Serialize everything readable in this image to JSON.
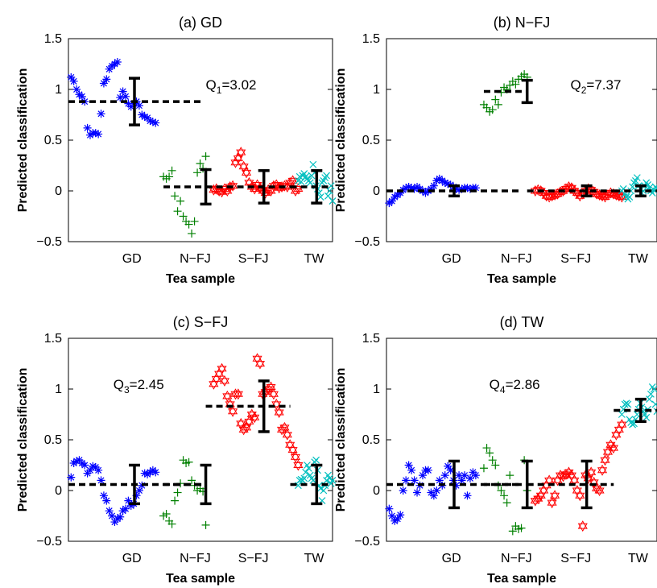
{
  "chart_data": [
    {
      "type": "scatter",
      "title": "(a) GD",
      "xlabel": "Tea sample",
      "ylabel": "Predicted classification",
      "ylim": [
        -0.5,
        1.5
      ],
      "yticks": [
        "-0.5",
        "0",
        "0.5",
        "1",
        "1.5"
      ],
      "categories": [
        "GD",
        "N−FJ",
        "S−FJ",
        "TW"
      ],
      "annotation": {
        "q": "Q",
        "sub": "1",
        "val": "=3.02"
      },
      "colors": {
        "GD": "#0000ff",
        "N−FJ": "#008000",
        "S−FJ": "#ff0000",
        "TW": "#00bfbf"
      },
      "markers": {
        "GD": "asterisk",
        "N−FJ": "plus",
        "S−FJ": "hexagram",
        "TW": "cross"
      },
      "groups": [
        {
          "name": "GD",
          "mean": 0.88,
          "sd": 0.23,
          "values": [
            1.12,
            1.08,
            1.0,
            0.95,
            0.93,
            0.88,
            0.62,
            0.55,
            0.57,
            0.57,
            0.56,
            0.76,
            1.06,
            1.1,
            1.2,
            1.23,
            1.25,
            1.27,
            0.92,
            0.98,
            0.93,
            0.86,
            0.83,
            0.86,
            0.88,
            0.84,
            0.75,
            0.73,
            0.72,
            0.69,
            0.68,
            0.67
          ]
        },
        {
          "name": "N−FJ",
          "mean": 0.04,
          "sd": 0.17,
          "values": [
            0.14,
            0.12,
            0.14,
            0.2,
            -0.05,
            -0.2,
            -0.1,
            -0.25,
            -0.3,
            -0.33,
            -0.42,
            -0.3,
            0.18,
            0.27,
            0.22,
            0.34
          ]
        },
        {
          "name": "S−FJ",
          "mean": 0.04,
          "sd": 0.16,
          "values": [
            0.01,
            0.02,
            0.0,
            -0.01,
            0.02,
            0.0,
            0.04,
            0.05,
            0.28,
            0.32,
            0.38,
            0.24,
            0.18,
            0.08,
            0.04,
            0.02,
            0.06,
            0.03,
            0.0,
            -0.02,
            0.01,
            0.0,
            0.05,
            0.06,
            0.03,
            0.04,
            0.05,
            0.04,
            0.08,
            0.1,
            0.0,
            0.02
          ]
        },
        {
          "name": "TW",
          "mean": 0.04,
          "sd": 0.16,
          "values": [
            0.1,
            0.14,
            0.09,
            0.15,
            0.17,
            0.14,
            0.12,
            0.1,
            0.08,
            0.15,
            0.26,
            0.18,
            0.05,
            0.02,
            -0.02,
            -0.06,
            0.08,
            0.1,
            0.13,
            0.15,
            -0.05,
            0.0,
            0.05,
            -0.1
          ]
        }
      ]
    },
    {
      "type": "scatter",
      "title": "(b) N−FJ",
      "xlabel": "Tea sample",
      "ylabel": "Predicted classification",
      "ylim": [
        -0.5,
        1.5
      ],
      "yticks": [
        "-0.5",
        "0",
        "0.5",
        "1",
        "1.5"
      ],
      "categories": [
        "GD",
        "N−FJ",
        "S−FJ",
        "TW"
      ],
      "annotation": {
        "q": "Q",
        "sub": "2",
        "val": "=7.37"
      },
      "colors": {
        "GD": "#0000ff",
        "N−FJ": "#008000",
        "S−FJ": "#ff0000",
        "TW": "#00bfbf"
      },
      "markers": {
        "GD": "asterisk",
        "N−FJ": "plus",
        "S−FJ": "hexagram",
        "TW": "cross"
      },
      "groups": [
        {
          "name": "GD",
          "mean": 0.0,
          "sd": 0.05,
          "values": [
            -0.12,
            -0.1,
            -0.06,
            -0.04,
            -0.02,
            0.01,
            0.03,
            0.04,
            0.03,
            0.02,
            0.04,
            0.02,
            0.0,
            -0.02,
            0.0,
            0.02,
            0.05,
            0.1,
            0.12,
            0.1,
            0.08,
            0.07,
            0.06,
            0.04,
            0.02,
            0.01,
            0.02,
            0.03,
            0.03,
            0.02,
            0.03,
            0.03
          ]
        },
        {
          "name": "N−FJ",
          "mean": 0.98,
          "sd": 0.11,
          "values": [
            0.85,
            0.82,
            0.78,
            0.8,
            0.9,
            0.85,
            0.97,
            1.02,
            1.0,
            1.04,
            1.08,
            1.05,
            1.1,
            1.13,
            1.15,
            1.12
          ]
        },
        {
          "name": "S−FJ",
          "mean": 0.0,
          "sd": 0.05,
          "values": [
            0.0,
            0.01,
            0.0,
            -0.02,
            -0.05,
            -0.06,
            -0.05,
            -0.04,
            -0.03,
            -0.01,
            0.0,
            0.02,
            0.04,
            0.03,
            0.0,
            -0.02,
            -0.05,
            -0.03,
            0.0,
            0.02,
            0.01,
            -0.01,
            -0.03,
            -0.04,
            -0.05,
            -0.06,
            -0.04,
            -0.02,
            -0.03,
            -0.04,
            -0.05,
            -0.06
          ]
        },
        {
          "name": "TW",
          "mean": 0.0,
          "sd": 0.05,
          "values": [
            0.0,
            0.02,
            -0.03,
            -0.06,
            -0.08,
            -0.06,
            0.0,
            0.04,
            0.08,
            0.1,
            0.13,
            0.05,
            0.02,
            -0.02,
            0.0,
            0.05,
            0.08,
            0.06,
            0.03,
            0.0,
            -0.02,
            0.01,
            0.04,
            0.02
          ]
        }
      ]
    },
    {
      "type": "scatter",
      "title": "(c) S−FJ",
      "xlabel": "Tea sample",
      "ylabel": "Predicted classification",
      "ylim": [
        -0.5,
        1.5
      ],
      "yticks": [
        "-0.5",
        "0",
        "0.5",
        "1",
        "1.5"
      ],
      "categories": [
        "GD",
        "N−FJ",
        "S−FJ",
        "TW"
      ],
      "annotation": {
        "q": "Q",
        "sub": "3",
        "val": "=2.45"
      },
      "colors": {
        "GD": "#0000ff",
        "N−FJ": "#008000",
        "S−FJ": "#ff0000",
        "TW": "#00bfbf"
      },
      "markers": {
        "GD": "asterisk",
        "N−FJ": "plus",
        "S−FJ": "hexagram",
        "TW": "cross"
      },
      "groups": [
        {
          "name": "GD",
          "mean": 0.06,
          "sd": 0.19,
          "values": [
            0.13,
            0.27,
            0.29,
            0.3,
            0.27,
            0.25,
            0.17,
            0.2,
            0.24,
            0.23,
            0.2,
            0.1,
            -0.05,
            -0.1,
            -0.2,
            -0.25,
            -0.31,
            -0.28,
            -0.26,
            -0.2,
            -0.18,
            -0.1,
            -0.15,
            -0.13,
            -0.05,
            0.0,
            0.05,
            0.17,
            0.16,
            0.18,
            0.2,
            0.18
          ]
        },
        {
          "name": "N−FJ",
          "mean": 0.06,
          "sd": 0.19,
          "values": [
            -0.25,
            -0.23,
            -0.3,
            -0.33,
            -0.1,
            -0.02,
            0.07,
            0.3,
            0.27,
            0.28,
            0.1,
            0.05,
            0.0,
            0.02,
            -0.01,
            -0.34
          ]
        },
        {
          "name": "S−FJ",
          "mean": 0.83,
          "sd": 0.25,
          "values": [
            1.05,
            1.1,
            1.15,
            1.2,
            1.08,
            0.93,
            0.85,
            0.78,
            0.95,
            0.95,
            0.66,
            0.6,
            0.62,
            0.68,
            0.75,
            0.72,
            1.3,
            1.25,
            0.95,
            0.97,
            1.0,
            1.02,
            0.95,
            0.85,
            0.77,
            0.6,
            0.62,
            0.55,
            0.45,
            0.4,
            0.33,
            0.25
          ]
        },
        {
          "name": "TW",
          "mean": 0.06,
          "sd": 0.19,
          "values": [
            0.05,
            0.1,
            0.11,
            0.1,
            0.12,
            0.18,
            0.25,
            0.22,
            0.15,
            0.12,
            0.1,
            0.28,
            0.3,
            0.2,
            0.05,
            0.02,
            -0.1,
            0.0,
            0.05,
            0.1,
            0.15,
            0.12,
            0.07,
            0.1
          ]
        }
      ]
    },
    {
      "type": "scatter",
      "title": "(d) TW",
      "xlabel": "Tea sample",
      "ylabel": "Predicted classification",
      "ylim": [
        -0.5,
        1.5
      ],
      "yticks": [
        "-0.5",
        "0",
        "0.5",
        "1",
        "1.5"
      ],
      "categories": [
        "GD",
        "N−FJ",
        "S−FJ",
        "TW"
      ],
      "annotation": {
        "q": "Q",
        "sub": "4",
        "val": "=2.86"
      },
      "colors": {
        "GD": "#0000ff",
        "N−FJ": "#008000",
        "S−FJ": "#ff0000",
        "TW": "#00bfbf"
      },
      "markers": {
        "GD": "asterisk",
        "N−FJ": "plus",
        "S−FJ": "hexagram",
        "TW": "cross"
      },
      "groups": [
        {
          "name": "GD",
          "mean": 0.06,
          "sd": 0.23,
          "values": [
            -0.18,
            -0.25,
            -0.3,
            -0.28,
            -0.24,
            0.0,
            0.1,
            0.25,
            0.2,
            0.1,
            -0.02,
            0.05,
            0.15,
            0.2,
            0.2,
            -0.02,
            -0.05,
            0.0,
            0.1,
            0.05,
            0.15,
            0.24,
            0.2,
            0.1,
            0.05,
            0.15,
            0.1,
            0.15,
            -0.05,
            0.12,
            0.18,
            0.15
          ]
        },
        {
          "name": "N−FJ",
          "mean": 0.06,
          "sd": 0.23,
          "values": [
            0.22,
            0.42,
            0.37,
            0.3,
            0.25,
            0.05,
            0.0,
            -0.05,
            -0.12,
            0.15,
            -0.4,
            -0.35,
            -0.38,
            -0.37,
            0.3,
            0.0
          ]
        },
        {
          "name": "S−FJ",
          "mean": 0.06,
          "sd": 0.23,
          "values": [
            -0.1,
            -0.08,
            -0.05,
            0.0,
            0.05,
            0.1,
            -0.12,
            -0.05,
            0.1,
            0.15,
            0.14,
            0.16,
            0.18,
            0.15,
            0.1,
            0.0,
            -0.05,
            -0.35,
            0.15,
            0.12,
            0.18,
            0.08,
            0.02,
            0.0,
            0.2,
            0.3,
            0.38,
            0.45,
            0.42,
            0.55,
            0.6,
            0.65
          ]
        },
        {
          "name": "TW",
          "mean": 0.79,
          "sd": 0.11,
          "values": [
            0.75,
            0.8,
            0.85,
            0.86,
            0.85,
            0.7,
            0.67,
            0.65,
            0.66,
            0.7,
            0.75,
            0.8,
            0.86,
            0.82,
            0.78,
            0.75,
            0.72,
            0.8,
            0.9,
            0.95,
            1.02,
            1.0,
            0.85,
            0.78
          ]
        }
      ]
    }
  ]
}
